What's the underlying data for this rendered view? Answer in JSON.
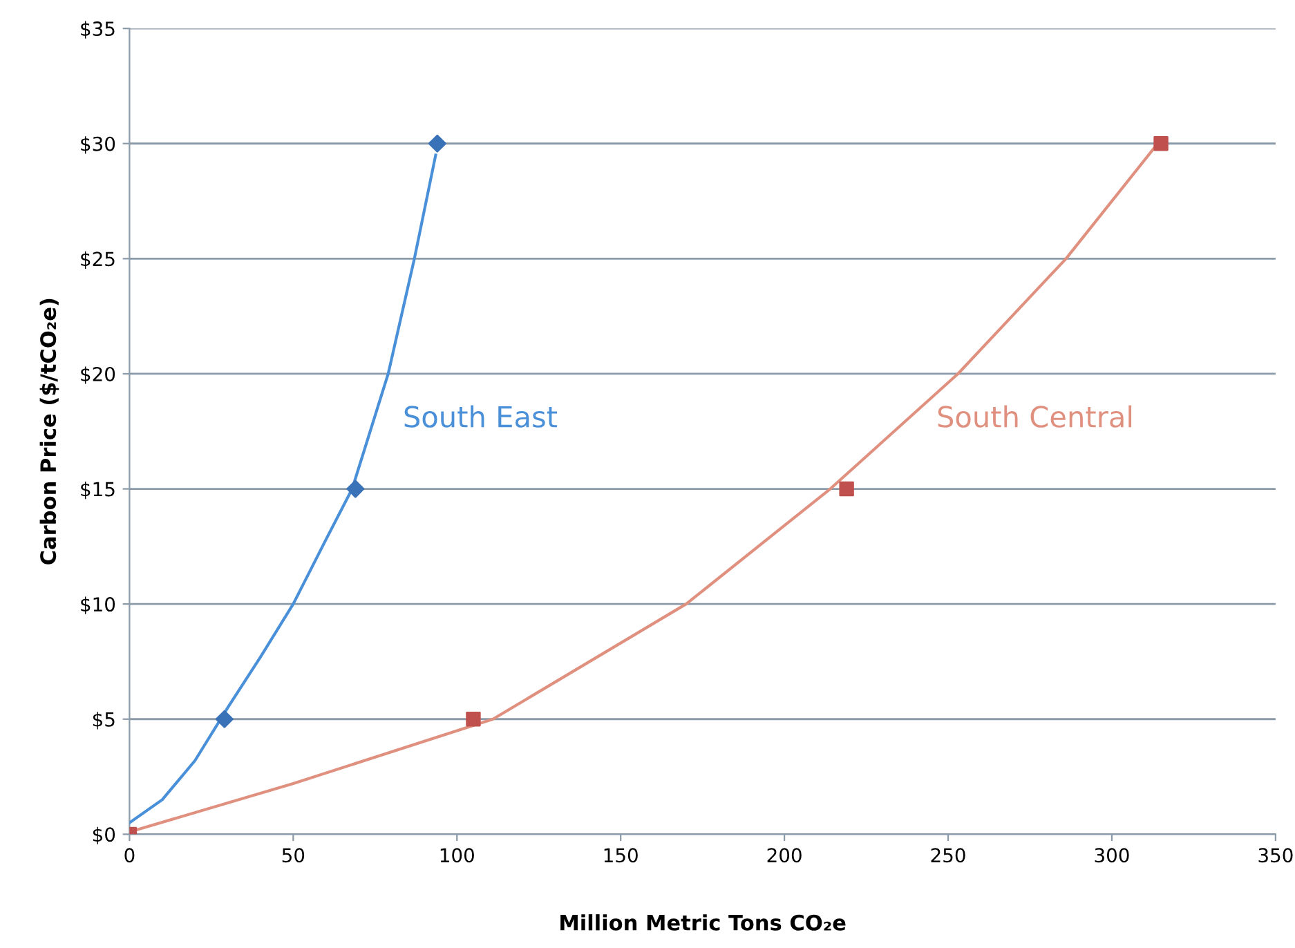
{
  "chart_data": {
    "type": "scatter",
    "xlabel": "Million Metric Tons CO₂e",
    "ylabel": "Carbon Price ($/tCO₂e)",
    "xlim": [
      0,
      350
    ],
    "xticks": [
      0,
      50,
      100,
      150,
      200,
      250,
      300,
      350
    ],
    "ylim": [
      0,
      35
    ],
    "yticks": [
      {
        "value": 0,
        "label": "$0"
      },
      {
        "value": 5,
        "label": "$5"
      },
      {
        "value": 10,
        "label": "$10"
      },
      {
        "value": 15,
        "label": "$15"
      },
      {
        "value": 20,
        "label": "$20"
      },
      {
        "value": 25,
        "label": "$25"
      },
      {
        "value": 30,
        "label": "$30"
      },
      {
        "value": 35,
        "label": "$35"
      }
    ],
    "grid": "y",
    "legend": false,
    "series": [
      {
        "marker": "diamond",
        "color": "#3a72b8",
        "x": [
          29,
          69,
          94
        ],
        "values": [
          5,
          15,
          30
        ]
      },
      {
        "marker": "square",
        "color": "#c0504d",
        "x": [
          0,
          105,
          219,
          315
        ],
        "values": [
          0,
          5,
          15,
          30
        ]
      },
      {
        "type": "line",
        "name": "South East",
        "color": "#4a90d9",
        "marker": "none",
        "x": [
          0,
          10,
          20,
          30,
          40,
          50,
          60,
          68,
          79,
          87,
          93.5
        ],
        "values": [
          0.5,
          1.5,
          3.2,
          5.5,
          7.7,
          10,
          12.8,
          15,
          20,
          25,
          29.5
        ]
      },
      {
        "type": "line",
        "name": "South Central",
        "color": "#e0907f",
        "marker": "none",
        "x": [
          0,
          50,
          111,
          170,
          214,
          253,
          286,
          314
        ],
        "values": [
          0.1,
          2.2,
          5,
          10,
          15,
          20,
          25,
          30
        ]
      }
    ]
  }
}
